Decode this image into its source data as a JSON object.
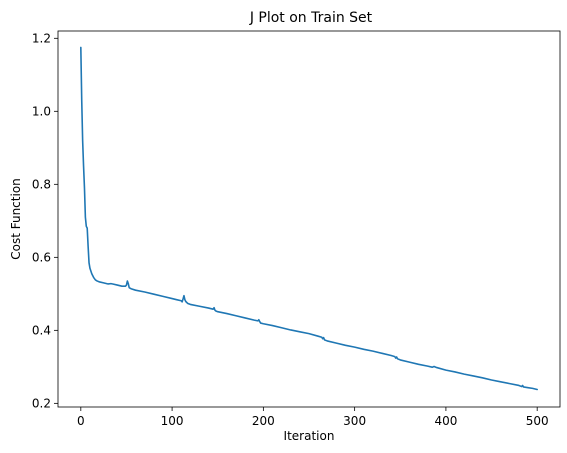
{
  "chart_data": {
    "type": "line",
    "title": "J Plot on Train Set",
    "xlabel": "Iteration",
    "ylabel": "Cost Function",
    "xlim": [
      -25,
      525
    ],
    "ylim": [
      0.19,
      1.22
    ],
    "xticks": [
      0,
      100,
      200,
      300,
      400,
      500
    ],
    "yticks": [
      0.2,
      0.4,
      0.6,
      0.8,
      1.0,
      1.2
    ],
    "xtick_labels": [
      "0",
      "100",
      "200",
      "300",
      "400",
      "500"
    ],
    "ytick_labels": [
      "0.2",
      "0.4",
      "0.6",
      "0.8",
      "1.0",
      "1.2"
    ],
    "grid": false,
    "series": [
      {
        "color": "#1f77b4",
        "x": [
          0,
          1,
          2,
          3,
          4,
          5,
          6,
          7,
          8,
          9,
          10,
          12,
          14,
          16,
          18,
          20,
          25,
          30,
          33,
          35,
          40,
          45,
          49,
          50,
          51,
          52,
          53,
          55,
          60,
          70,
          80,
          90,
          100,
          105,
          110,
          111,
          112,
          113,
          114,
          115,
          117,
          120,
          130,
          140,
          145,
          146,
          147,
          148,
          150,
          160,
          170,
          180,
          190,
          194,
          195,
          196,
          197,
          200,
          210,
          220,
          230,
          240,
          250,
          260,
          264,
          265,
          266,
          267,
          270,
          280,
          290,
          300,
          310,
          320,
          330,
          340,
          344,
          345,
          346,
          347,
          350,
          360,
          370,
          380,
          385,
          387,
          390,
          400,
          410,
          420,
          430,
          440,
          450,
          460,
          470,
          480,
          483,
          484,
          485,
          490,
          495,
          500
        ],
        "y": [
          1.175,
          1.03,
          0.92,
          0.85,
          0.79,
          0.71,
          0.685,
          0.68,
          0.63,
          0.585,
          0.57,
          0.555,
          0.545,
          0.538,
          0.535,
          0.533,
          0.53,
          0.527,
          0.528,
          0.527,
          0.524,
          0.521,
          0.521,
          0.524,
          0.535,
          0.528,
          0.517,
          0.514,
          0.51,
          0.505,
          0.499,
          0.493,
          0.487,
          0.484,
          0.481,
          0.478,
          0.486,
          0.495,
          0.484,
          0.479,
          0.474,
          0.471,
          0.466,
          0.461,
          0.458,
          0.462,
          0.455,
          0.453,
          0.451,
          0.446,
          0.44,
          0.434,
          0.428,
          0.426,
          0.429,
          0.424,
          0.42,
          0.418,
          0.413,
          0.407,
          0.401,
          0.396,
          0.391,
          0.384,
          0.381,
          0.377,
          0.38,
          0.374,
          0.371,
          0.365,
          0.359,
          0.354,
          0.348,
          0.343,
          0.337,
          0.331,
          0.328,
          0.324,
          0.327,
          0.322,
          0.319,
          0.313,
          0.307,
          0.302,
          0.299,
          0.301,
          0.298,
          0.291,
          0.286,
          0.28,
          0.275,
          0.27,
          0.264,
          0.259,
          0.254,
          0.249,
          0.246,
          0.249,
          0.245,
          0.243,
          0.241,
          0.238
        ]
      }
    ]
  }
}
